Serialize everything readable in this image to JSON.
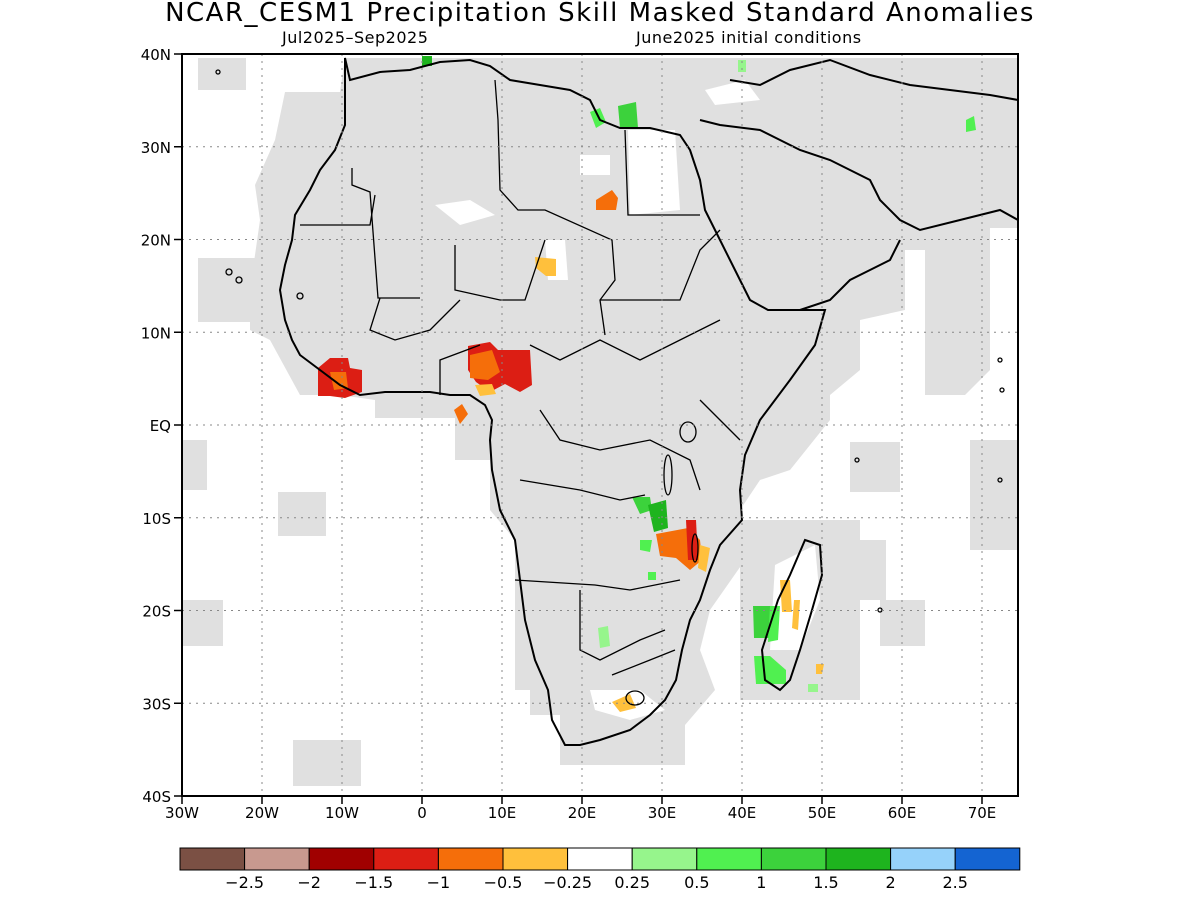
{
  "title": "NCAR_CESM1 Precipitation Skill Masked Standard Anomalies",
  "subtitle_left": "Jul2025–Sep2025",
  "subtitle_right": "June2025 initial conditions",
  "axes": {
    "lon_ticks": [
      "30W",
      "20W",
      "10W",
      "0",
      "10E",
      "20E",
      "30E",
      "40E",
      "50E",
      "60E",
      "70E"
    ],
    "lat_ticks": [
      "40N",
      "30N",
      "20N",
      "10N",
      "EQ",
      "10S",
      "20S",
      "30S",
      "40S"
    ]
  },
  "colorbar": {
    "colors": [
      "#7b5044",
      "#c8998f",
      "#a00000",
      "#dc1e14",
      "#f56e0a",
      "#ffc03c",
      "#ffffff",
      "#96f58c",
      "#50f050",
      "#3cd23c",
      "#1eb41e",
      "#96d2fa",
      "#1464d2"
    ],
    "labels": [
      "−2.5",
      "−2",
      "−1.5",
      "−1",
      "−0.5",
      "−0.25",
      "0.25",
      "0.5",
      "1",
      "1.5",
      "2",
      "2.5"
    ]
  },
  "colors": {
    "masked_gray": "#e0e0e0",
    "coast": "#000000"
  }
}
